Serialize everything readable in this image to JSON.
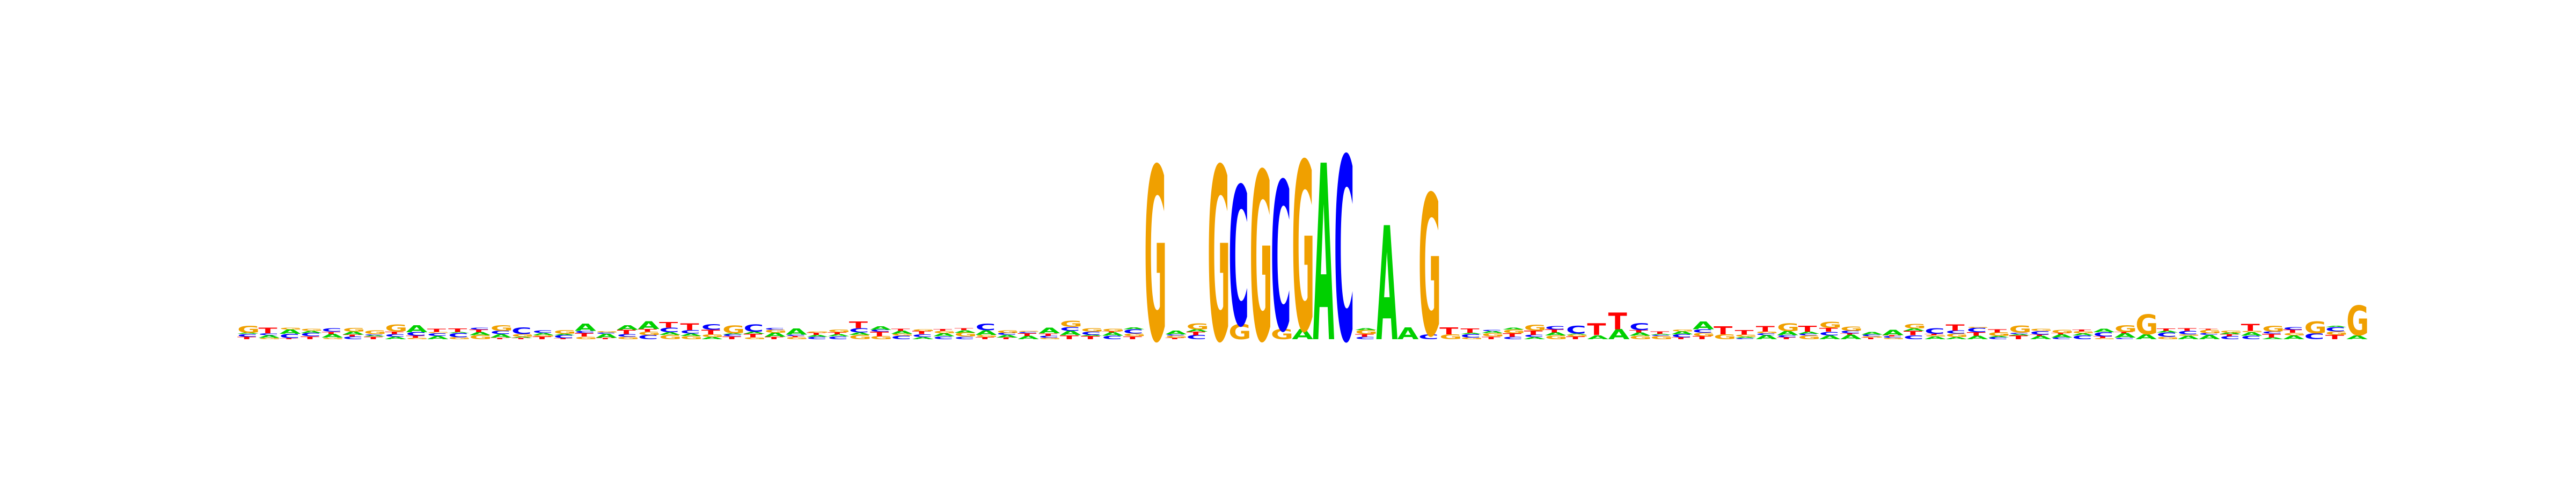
{
  "logo": {
    "type": "sequence-logo",
    "alphabet": [
      "A",
      "C",
      "G",
      "T"
    ],
    "colors": {
      "A": "#00d000",
      "C": "#0000ff",
      "G": "#f0a000",
      "T": "#ff0000"
    },
    "position_count": 101,
    "max_information_bits": 2,
    "motif_positions": [
      {
        "index": 43,
        "letters": [
          {
            "base": "G",
            "bits": 1.75
          }
        ]
      },
      {
        "index": 46,
        "letters": [
          {
            "base": "G",
            "bits": 1.75
          }
        ]
      },
      {
        "index": 47,
        "letters": [
          {
            "base": "G",
            "bits": 0.15
          },
          {
            "base": "C",
            "bits": 1.4
          }
        ]
      },
      {
        "index": 48,
        "letters": [
          {
            "base": "G",
            "bits": 1.7
          }
        ]
      },
      {
        "index": 49,
        "letters": [
          {
            "base": "G",
            "bits": 0.1
          },
          {
            "base": "C",
            "bits": 1.5
          }
        ]
      },
      {
        "index": 50,
        "letters": [
          {
            "base": "A",
            "bits": 0.1
          },
          {
            "base": "G",
            "bits": 1.7
          }
        ]
      },
      {
        "index": 51,
        "letters": [
          {
            "base": "A",
            "bits": 1.78
          }
        ]
      },
      {
        "index": 52,
        "letters": [
          {
            "base": "C",
            "bits": 1.85
          }
        ]
      },
      {
        "index": 54,
        "letters": [
          {
            "base": "A",
            "bits": 1.15
          }
        ]
      },
      {
        "index": 55,
        "letters": [
          {
            "base": "A",
            "bits": 0.12
          }
        ]
      },
      {
        "index": 56,
        "letters": [
          {
            "base": "G",
            "bits": 1.42
          },
          {
            "base": "C",
            "bits": 0.05
          }
        ]
      },
      {
        "index": 57,
        "letters": [
          {
            "base": "T",
            "bits": 0.07
          },
          {
            "base": "G",
            "bits": 0.05
          }
        ]
      },
      {
        "index": 64,
        "letters": [
          {
            "base": "T",
            "bits": 0.12
          },
          {
            "base": "A",
            "bits": 0.04
          }
        ]
      },
      {
        "index": 65,
        "letters": [
          {
            "base": "T",
            "bits": 0.17
          },
          {
            "base": "A",
            "bits": 0.1
          }
        ]
      },
      {
        "index": 70,
        "letters": [
          {
            "base": "T",
            "bits": 0.08
          },
          {
            "base": "G",
            "bits": 0.05
          }
        ]
      },
      {
        "index": 90,
        "letters": [
          {
            "base": "G",
            "bits": 0.2
          },
          {
            "base": "A",
            "bits": 0.05
          }
        ]
      },
      {
        "index": 98,
        "letters": [
          {
            "base": "G",
            "bits": 0.12
          },
          {
            "base": "C",
            "bits": 0.06
          }
        ]
      },
      {
        "index": 100,
        "letters": [
          {
            "base": "G",
            "bits": 0.3
          },
          {
            "base": "A",
            "bits": 0.04
          }
        ]
      }
    ]
  }
}
